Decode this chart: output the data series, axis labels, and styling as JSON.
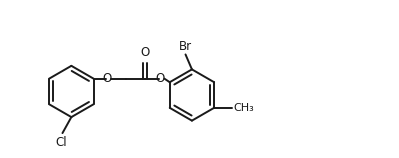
{
  "bg_color": "#ffffff",
  "line_color": "#1a1a1a",
  "line_width": 1.4,
  "font_size": 8.5,
  "figsize": [
    3.99,
    1.58
  ],
  "dpi": 100,
  "xlim": [
    0,
    10.5
  ],
  "ylim": [
    -2.2,
    2.2
  ]
}
